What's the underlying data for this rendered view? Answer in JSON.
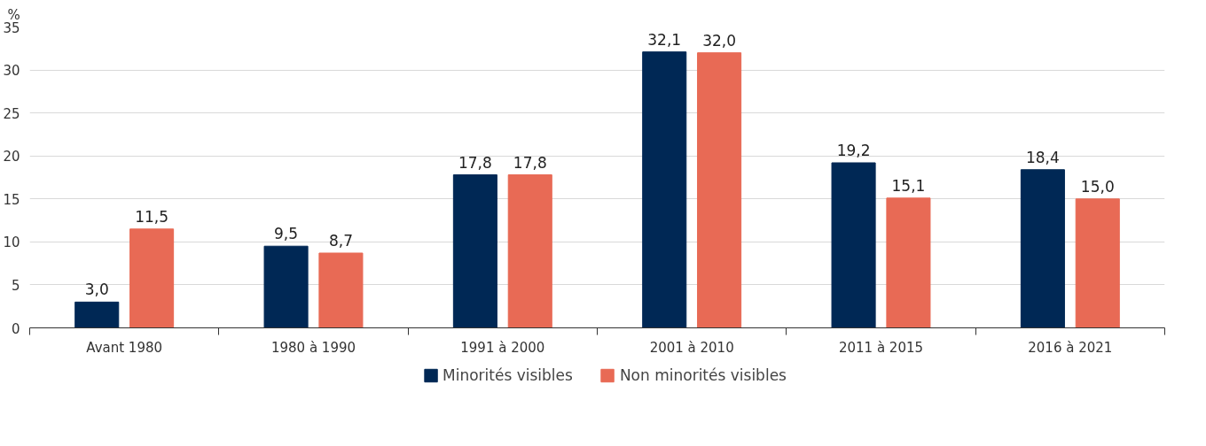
{
  "chart_data": {
    "type": "bar",
    "ylabel": "%",
    "categories": [
      "Avant 1980",
      "1980 à 1990",
      "1991 à 2000",
      "2001 à 2010",
      "2011 à 2015",
      "2016 à 2021"
    ],
    "series": [
      {
        "name": "Minorités visibles",
        "color": "#002855",
        "values": [
          3.0,
          9.5,
          17.8,
          32.1,
          19.2,
          18.4
        ],
        "value_labels": [
          "3,0",
          "9,5",
          "17,8",
          "32,1",
          "19,2",
          "18,4"
        ]
      },
      {
        "name": "Non minorités visibles",
        "color": "#e86a55",
        "values": [
          11.5,
          8.7,
          17.8,
          32.0,
          15.1,
          15.0
        ],
        "value_labels": [
          "11,5",
          "8,7",
          "17,8",
          "32,0",
          "15,1",
          "15,0"
        ]
      }
    ],
    "ylim": [
      0,
      35
    ],
    "yticks": [
      0,
      5,
      10,
      15,
      20,
      25,
      30,
      35
    ],
    "grid": "y",
    "legend": "bottom"
  }
}
